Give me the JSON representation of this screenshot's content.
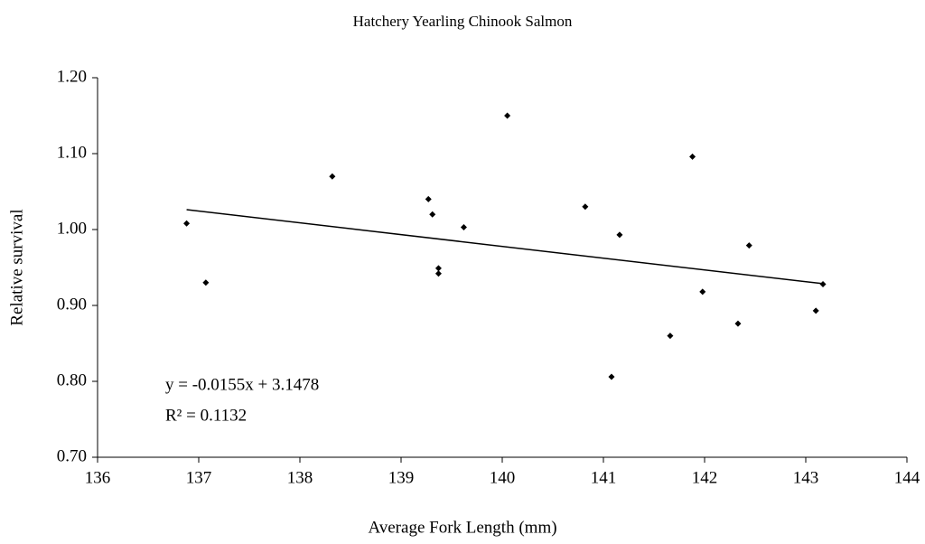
{
  "chart_data": {
    "type": "scatter",
    "title": "Hatchery Yearling Chinook Salmon",
    "x_label": "Average Fork Length (mm)",
    "y_label": "Relative survival",
    "x": [
      136.88,
      137.07,
      138.32,
      139.27,
      139.31,
      139.37,
      139.37,
      139.62,
      140.05,
      140.82,
      141.08,
      141.16,
      141.66,
      141.88,
      141.98,
      142.33,
      142.44,
      143.1,
      143.17
    ],
    "values": [
      1.008,
      0.93,
      1.07,
      1.04,
      1.02,
      0.949,
      0.942,
      1.003,
      1.15,
      1.03,
      0.806,
      0.993,
      0.86,
      1.096,
      0.918,
      0.876,
      0.979,
      0.893,
      0.928
    ],
    "color": "#000000",
    "xlim": [
      136,
      144
    ],
    "xticks": [
      136,
      137,
      138,
      139,
      140,
      141,
      142,
      143,
      144
    ],
    "ylim": [
      0.7,
      1.2
    ],
    "yticks": [
      {
        "value": 0.7,
        "label": "0.70"
      },
      {
        "value": 0.8,
        "label": "0.80"
      },
      {
        "value": 0.9,
        "label": "0.90"
      },
      {
        "value": 1.0,
        "label": "1.00"
      },
      {
        "value": 1.1,
        "label": "1.10"
      },
      {
        "value": 1.2,
        "label": "1.20"
      }
    ],
    "grid": false,
    "trendline": {
      "slope": -0.0155,
      "intercept": 3.1478,
      "equation": "y = -0.0155x + 3.1478",
      "r_squared": "R² = 0.1132"
    }
  }
}
